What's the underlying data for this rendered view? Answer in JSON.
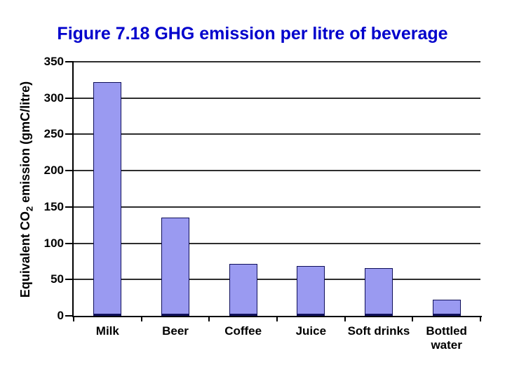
{
  "title": {
    "text": "Figure 7.18 GHG emission per litre of beverage",
    "color": "#0000cc"
  },
  "y_axis_title_parts": {
    "pre": "Equivalent CO",
    "sub": "2",
    "post": " emission (gmC/litre)"
  },
  "chart_data": {
    "type": "bar",
    "title": "Figure 7.18 GHG emission per litre of beverage",
    "categories": [
      "Milk",
      "Beer",
      "Coffee",
      "Juice",
      "Soft drinks",
      "Bottled water"
    ],
    "values": [
      322,
      135,
      72,
      69,
      66,
      22
    ],
    "xlabel": "",
    "ylabel": "Equivalent CO2 emission (gmC/litre)",
    "ylim": [
      0,
      350
    ],
    "yticks": [
      0,
      50,
      100,
      150,
      200,
      250,
      300,
      350
    ],
    "grid": "horizontal gridlines at each y tick",
    "legend": "none",
    "colors": {
      "bar_fill": "#9a9af1",
      "bar_border": "#10105a",
      "gridline": "#2e2e2e",
      "axis": "#000000",
      "title_text": "#0000cc",
      "label_text": "#000000",
      "background": "#ffffff"
    }
  }
}
